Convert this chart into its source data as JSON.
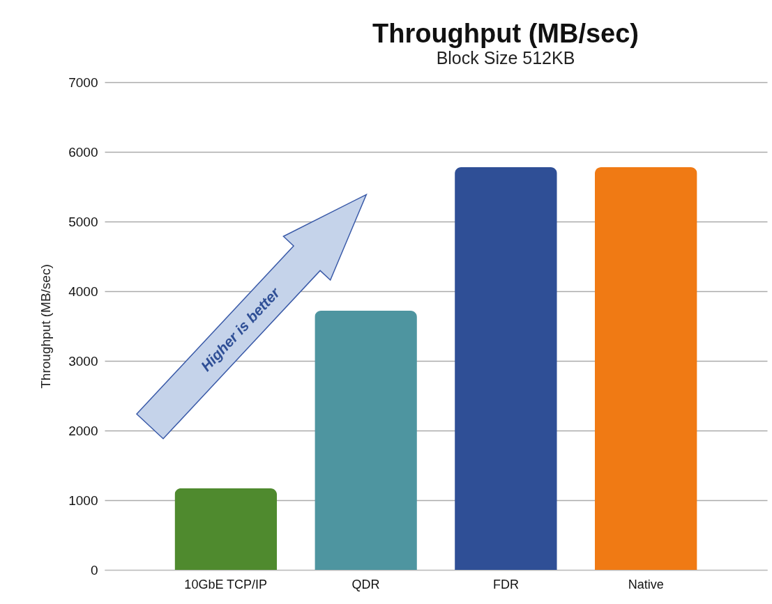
{
  "chart_data": {
    "type": "bar",
    "title": "Throughput (MB/sec)",
    "subtitle": "Block Size 512KB",
    "ylabel": "Throughput (MB/sec)",
    "categories": [
      "10GbE TCP/IP",
      "QDR",
      "FDR",
      "Native"
    ],
    "values": [
      1170,
      3720,
      5780,
      5780
    ],
    "colors": [
      "#4f8a2e",
      "#4e95a0",
      "#2f4f96",
      "#f07a14"
    ],
    "ylim": [
      0,
      7000
    ],
    "yticks": [
      0,
      1000,
      2000,
      3000,
      4000,
      5000,
      6000,
      7000
    ],
    "grid": "y",
    "annotations": [
      "Higher is better"
    ]
  }
}
